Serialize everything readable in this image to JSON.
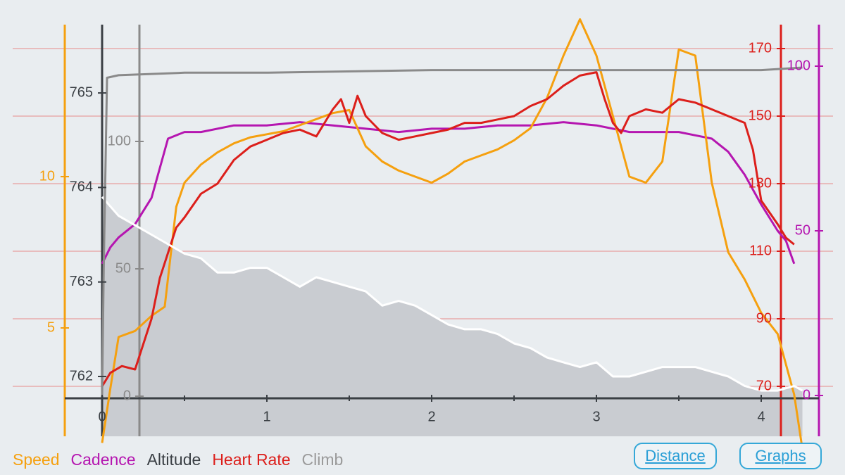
{
  "legend": {
    "speed": "Speed",
    "cadence": "Cadence",
    "altitude": "Altitude",
    "heart_rate": "Heart Rate",
    "climb": "Climb"
  },
  "buttons": {
    "distance": "Distance",
    "graphs": "Graphs"
  },
  "colors": {
    "speed": "#f5a00f",
    "cadence": "#b516b0",
    "altitude": "#ffffff",
    "altitude_fill": "#c9ccd1",
    "heart_rate": "#dc1f1b",
    "climb": "#8a8a8a",
    "altitude_axis": "#3a3f44",
    "background": "#e9edf0",
    "button": "#2a9fd6"
  },
  "chart_data": {
    "type": "line",
    "x_axis": {
      "ticks": [
        "0",
        "1",
        "2",
        "3",
        "4"
      ],
      "range": [
        0,
        4.25
      ]
    },
    "axes": {
      "speed": {
        "ticks": [
          "5",
          "10"
        ]
      },
      "altitude": {
        "ticks": [
          "762",
          "763",
          "764",
          "765"
        ]
      },
      "climb": {
        "ticks": [
          "0",
          "50",
          "100"
        ]
      },
      "heart_rate": {
        "ticks": [
          "70",
          "90",
          "110",
          "130",
          "150",
          "170"
        ],
        "range": [
          65,
          170
        ]
      },
      "cadence": {
        "ticks": [
          "0",
          "50",
          "100"
        ]
      }
    },
    "grid": "horizontal heart-rate gridlines",
    "series": [
      {
        "name": "Heart Rate",
        "key": "heart_rate",
        "x": [
          0,
          0.05,
          0.12,
          0.2,
          0.3,
          0.35,
          0.45,
          0.5,
          0.6,
          0.7,
          0.8,
          0.9,
          1.0,
          1.1,
          1.2,
          1.3,
          1.35,
          1.4,
          1.45,
          1.5,
          1.55,
          1.6,
          1.7,
          1.8,
          1.9,
          2.0,
          2.1,
          2.2,
          2.3,
          2.4,
          2.5,
          2.6,
          2.7,
          2.8,
          2.9,
          3.0,
          3.05,
          3.1,
          3.15,
          3.2,
          3.3,
          3.4,
          3.5,
          3.6,
          3.7,
          3.8,
          3.9,
          3.95,
          4.0,
          4.1,
          4.15,
          4.2
        ],
        "values": [
          70,
          74,
          76,
          75,
          90,
          102,
          117,
          120,
          127,
          130,
          137,
          141,
          143,
          145,
          146,
          144,
          148,
          152,
          155,
          148,
          156,
          150,
          145,
          143,
          144,
          145,
          146,
          148,
          148,
          149,
          150,
          153,
          155,
          159,
          162,
          163,
          155,
          148,
          145,
          150,
          152,
          151,
          155,
          154,
          152,
          150,
          148,
          140,
          125,
          118,
          114,
          112
        ]
      },
      {
        "name": "Speed",
        "key": "speed",
        "x": [
          0,
          0.05,
          0.1,
          0.2,
          0.3,
          0.38,
          0.45,
          0.5,
          0.6,
          0.7,
          0.8,
          0.9,
          1.0,
          1.1,
          1.2,
          1.3,
          1.4,
          1.5,
          1.6,
          1.7,
          1.8,
          1.9,
          2.0,
          2.1,
          2.2,
          2.3,
          2.4,
          2.5,
          2.6,
          2.7,
          2.8,
          2.9,
          3.0,
          3.05,
          3.1,
          3.2,
          3.3,
          3.4,
          3.5,
          3.6,
          3.7,
          3.8,
          3.9,
          4.0,
          4.1,
          4.2,
          4.25
        ],
        "values": [
          1.2,
          3.0,
          4.7,
          4.9,
          5.4,
          5.7,
          9.0,
          9.8,
          10.4,
          10.8,
          11.1,
          11.3,
          11.4,
          11.5,
          11.7,
          11.9,
          12.1,
          12.2,
          11.0,
          10.5,
          10.2,
          10.0,
          9.8,
          10.1,
          10.5,
          10.7,
          10.9,
          11.2,
          11.6,
          12.6,
          14.0,
          15.2,
          14.0,
          13.0,
          12.0,
          10.0,
          9.8,
          10.5,
          14.2,
          14.0,
          9.8,
          7.5,
          6.6,
          5.5,
          4.8,
          2.8,
          1.0
        ]
      },
      {
        "name": "Cadence",
        "key": "cadence",
        "x": [
          0,
          0.05,
          0.1,
          0.2,
          0.3,
          0.4,
          0.5,
          0.6,
          0.8,
          1.0,
          1.2,
          1.4,
          1.6,
          1.8,
          2.0,
          2.2,
          2.4,
          2.6,
          2.8,
          3.0,
          3.1,
          3.2,
          3.3,
          3.4,
          3.5,
          3.6,
          3.7,
          3.8,
          3.9,
          4.0,
          4.1,
          4.15,
          4.2
        ],
        "values": [
          40,
          45,
          48,
          52,
          60,
          78,
          80,
          80,
          82,
          82,
          83,
          82,
          81,
          80,
          81,
          81,
          82,
          82,
          83,
          82,
          81,
          80,
          80,
          80,
          80,
          79,
          78,
          74,
          67,
          58,
          50,
          47,
          40
        ]
      },
      {
        "name": "Altitude",
        "key": "altitude",
        "x": [
          0,
          0.05,
          0.1,
          0.2,
          0.3,
          0.4,
          0.5,
          0.6,
          0.7,
          0.8,
          0.9,
          1.0,
          1.1,
          1.2,
          1.3,
          1.4,
          1.5,
          1.6,
          1.7,
          1.8,
          1.9,
          2.0,
          2.1,
          2.2,
          2.3,
          2.4,
          2.5,
          2.6,
          2.7,
          2.8,
          2.9,
          3.0,
          3.1,
          3.2,
          3.3,
          3.4,
          3.5,
          3.6,
          3.7,
          3.8,
          3.9,
          4.0,
          4.1,
          4.2,
          4.25
        ],
        "values": [
          763.9,
          763.8,
          763.7,
          763.6,
          763.5,
          763.4,
          763.3,
          763.25,
          763.1,
          763.1,
          763.15,
          763.15,
          763.05,
          762.95,
          763.05,
          763.0,
          762.95,
          762.9,
          762.75,
          762.8,
          762.75,
          762.65,
          762.55,
          762.5,
          762.5,
          762.45,
          762.35,
          762.3,
          762.2,
          762.15,
          762.1,
          762.15,
          762.0,
          762.0,
          762.05,
          762.1,
          762.1,
          762.1,
          762.05,
          762.0,
          761.9,
          761.85,
          761.85,
          761.9,
          761.85
        ]
      },
      {
        "name": "Climb",
        "key": "climb",
        "x": [
          0,
          0.01,
          0.03,
          0.1,
          0.5,
          1.0,
          2.0,
          3.0,
          4.0,
          4.25
        ],
        "values": [
          0,
          50,
          125,
          126,
          127,
          127,
          128,
          128,
          128,
          129
        ]
      }
    ]
  }
}
